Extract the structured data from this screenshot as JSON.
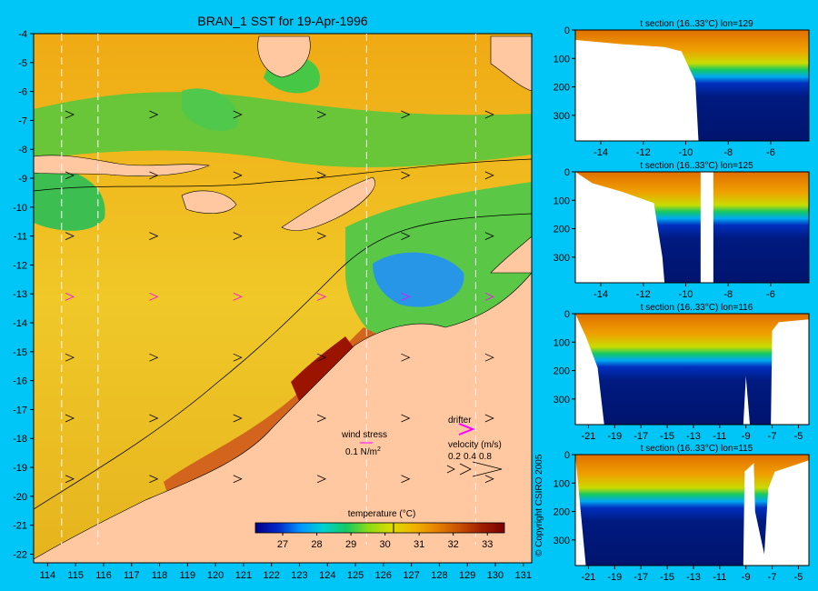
{
  "figure": {
    "title": "BRAN_1 SST for 19-Apr-1996",
    "copyright": "© Copyright CSIRO 2005",
    "colors": {
      "background": "#00c6f7",
      "land": "#ffc8a0",
      "no_data": "#ffffff",
      "deep": "#001a80",
      "warm": "#e08000",
      "hot": "#8b0000",
      "drifter": "#ff00ff"
    }
  },
  "chart_data": [
    {
      "type": "heatmap",
      "name": "sst-map",
      "title": "BRAN_1 SST for 19-Apr-1996",
      "x_ticks": [
        "114",
        "115",
        "116",
        "117",
        "118",
        "119",
        "120",
        "121",
        "122",
        "123",
        "124",
        "125",
        "126",
        "127",
        "128",
        "129",
        "130",
        "131"
      ],
      "y_ticks": [
        "-4",
        "-5",
        "-6",
        "-7",
        "-8",
        "-9",
        "-10",
        "-11",
        "-12",
        "-13",
        "-14",
        "-15",
        "-16",
        "-17",
        "-18",
        "-19",
        "-20",
        "-21",
        "-22"
      ],
      "xlim": [
        113.5,
        131.3
      ],
      "ylim": [
        -22.3,
        -4
      ],
      "section_lines_lon": [
        114.5,
        115.8,
        125.4,
        129.3
      ],
      "grid": false,
      "colorbar": {
        "label": "temperature (°C)",
        "ticks": [
          "27",
          "28",
          "29",
          "30",
          "31",
          "32",
          "33"
        ],
        "range": [
          26.2,
          33.5
        ],
        "marked_value": 30.25,
        "colors": [
          "#000088",
          "#0028c8",
          "#0096ff",
          "#00d2d2",
          "#14c864",
          "#8cdc14",
          "#dcdc00",
          "#f0b400",
          "#e68200",
          "#c85000",
          "#a01e00",
          "#7a0000"
        ]
      },
      "annotations": {
        "wind_stress": "wind stress",
        "wind_value": "0.1 N/m",
        "wind_exp": "2",
        "drifter": "drifter",
        "velocity": "velocity (m/s)",
        "velocity_values": [
          "0.2",
          "0.4",
          "0.8"
        ]
      }
    },
    {
      "type": "heatmap",
      "name": "section-lon-129",
      "title": "t section (16..33°C) lon=129",
      "x_ticks": [
        "-14",
        "-12",
        "-10",
        "-8",
        "-6"
      ],
      "y_ticks": [
        "0",
        "100",
        "200",
        "300"
      ],
      "xlim": [
        -15.2,
        -4.2
      ],
      "ylim": [
        390,
        0
      ],
      "bottom_depth": [
        [
          -15.2,
          35
        ],
        [
          -13,
          50
        ],
        [
          -11,
          60
        ],
        [
          -10.2,
          75
        ],
        [
          -9.55,
          180
        ],
        [
          -9.4,
          390
        ],
        [
          -4.2,
          390
        ]
      ],
      "band_top": 140,
      "band_bottom": 175
    },
    {
      "type": "heatmap",
      "name": "section-lon-125",
      "title": "t section (16..33°C) lon=125",
      "x_ticks": [
        "-14",
        "-12",
        "-10",
        "-8",
        "-6"
      ],
      "y_ticks": [
        "0",
        "100",
        "200",
        "300"
      ],
      "xlim": [
        -15.2,
        -4.2
      ],
      "ylim": [
        390,
        0
      ],
      "bottom_depth": [
        [
          -15.2,
          0
        ],
        [
          -14.4,
          40
        ],
        [
          -13,
          70
        ],
        [
          -11.5,
          110
        ],
        [
          -11.1,
          300
        ],
        [
          -11,
          390
        ],
        [
          -9.3,
          390
        ],
        [
          -9.3,
          0
        ],
        [
          -8.7,
          0
        ],
        [
          -8.7,
          390
        ],
        [
          -4.2,
          390
        ]
      ],
      "band_top": 110,
      "band_bottom": 165
    },
    {
      "type": "heatmap",
      "name": "section-lon-116",
      "title": "t section (16..33°C) lon=116",
      "x_ticks": [
        "-21",
        "-19",
        "-17",
        "-15",
        "-13",
        "-11",
        "-9",
        "-7",
        "-5"
      ],
      "y_ticks": [
        "0",
        "100",
        "200",
        "300"
      ],
      "xlim": [
        -22,
        -4.2
      ],
      "ylim": [
        390,
        0
      ],
      "bottom_depth": [
        [
          -22,
          0
        ],
        [
          -21.2,
          80
        ],
        [
          -20.3,
          190
        ],
        [
          -19.8,
          390
        ],
        [
          -9.2,
          390
        ],
        [
          -9,
          220
        ],
        [
          -8.7,
          390
        ],
        [
          -7.1,
          390
        ],
        [
          -7,
          60
        ],
        [
          -6.5,
          30
        ],
        [
          -4.2,
          20
        ]
      ],
      "band_top": 100,
      "band_bottom": 160
    },
    {
      "type": "heatmap",
      "name": "section-lon-115",
      "title": "t section (16..33°C) lon=115",
      "x_ticks": [
        "-21",
        "-19",
        "-17",
        "-15",
        "-13",
        "-11",
        "-9",
        "-7",
        "-5"
      ],
      "y_ticks": [
        "0",
        "100",
        "200",
        "300"
      ],
      "xlim": [
        -22,
        -4.2
      ],
      "ylim": [
        390,
        0
      ],
      "bottom_depth": [
        [
          -22,
          0
        ],
        [
          -21.2,
          390
        ],
        [
          -9.2,
          390
        ],
        [
          -9.1,
          60
        ],
        [
          -8.4,
          30
        ],
        [
          -8.3,
          200
        ],
        [
          -7.6,
          350
        ],
        [
          -7.3,
          120
        ],
        [
          -6.8,
          60
        ],
        [
          -4.2,
          20
        ]
      ],
      "band_top": 110,
      "band_bottom": 170
    }
  ]
}
